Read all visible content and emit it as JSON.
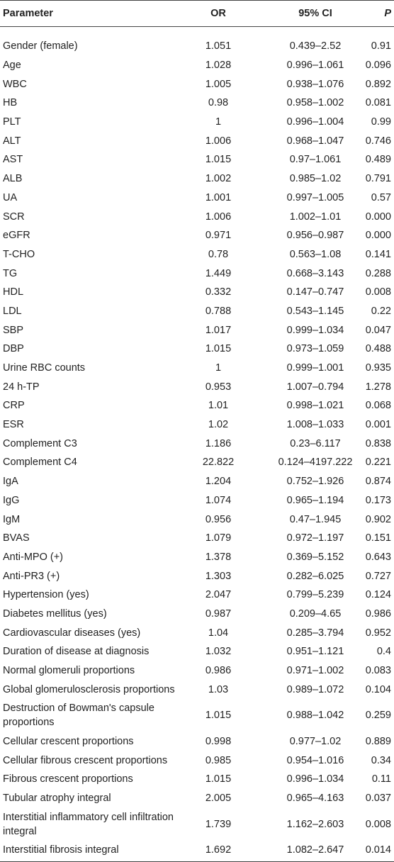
{
  "table": {
    "header": [
      "Parameter",
      "OR",
      "95% CI",
      "P"
    ],
    "rows": [
      [
        "Gender (female)",
        "1.051",
        "0.439–2.52",
        "0.91"
      ],
      [
        "Age",
        "1.028",
        "0.996–1.061",
        "0.096"
      ],
      [
        "WBC",
        "1.005",
        "0.938–1.076",
        "0.892"
      ],
      [
        "HB",
        "0.98",
        "0.958–1.002",
        "0.081"
      ],
      [
        "PLT",
        "1",
        "0.996–1.004",
        "0.99"
      ],
      [
        "ALT",
        "1.006",
        "0.968–1.047",
        "0.746"
      ],
      [
        "AST",
        "1.015",
        "0.97–1.061",
        "0.489"
      ],
      [
        "ALB",
        "1.002",
        "0.985–1.02",
        "0.791"
      ],
      [
        "UA",
        "1.001",
        "0.997–1.005",
        "0.57"
      ],
      [
        "SCR",
        "1.006",
        "1.002–1.01",
        "0.000"
      ],
      [
        "eGFR",
        "0.971",
        "0.956–0.987",
        "0.000"
      ],
      [
        "T-CHO",
        "0.78",
        "0.563–1.08",
        "0.141"
      ],
      [
        "TG",
        "1.449",
        "0.668–3.143",
        "0.288"
      ],
      [
        "HDL",
        "0.332",
        "0.147–0.747",
        "0.008"
      ],
      [
        "LDL",
        "0.788",
        "0.543–1.145",
        "0.22"
      ],
      [
        "SBP",
        "1.017",
        "0.999–1.034",
        "0.047"
      ],
      [
        "DBP",
        "1.015",
        "0.973–1.059",
        "0.488"
      ],
      [
        "Urine RBC counts",
        "1",
        "0.999–1.001",
        "0.935"
      ],
      [
        "24 h-TP",
        "0.953",
        "1.007–0.794",
        "1.278"
      ],
      [
        "CRP",
        "1.01",
        "0.998–1.021",
        "0.068"
      ],
      [
        "ESR",
        "1.02",
        "1.008–1.033",
        "0.001"
      ],
      [
        "Complement C3",
        "1.186",
        "0.23–6.117",
        "0.838"
      ],
      [
        "Complement C4",
        "22.822",
        "0.124–4197.222",
        "0.221"
      ],
      [
        "IgA",
        "1.204",
        "0.752–1.926",
        "0.874"
      ],
      [
        "IgG",
        "1.074",
        "0.965–1.194",
        "0.173"
      ],
      [
        "IgM",
        "0.956",
        "0.47–1.945",
        "0.902"
      ],
      [
        "BVAS",
        "1.079",
        "0.972–1.197",
        "0.151"
      ],
      [
        "Anti-MPO (+)",
        "1.378",
        "0.369–5.152",
        "0.643"
      ],
      [
        "Anti-PR3 (+)",
        "1.303",
        "0.282–6.025",
        "0.727"
      ],
      [
        "Hypertension (yes)",
        "2.047",
        "0.799–5.239",
        "0.124"
      ],
      [
        "Diabetes mellitus (yes)",
        "0.987",
        "0.209–4.65",
        "0.986"
      ],
      [
        "Cardiovascular diseases (yes)",
        "1.04",
        "0.285–3.794",
        "0.952"
      ],
      [
        "Duration of disease at diagnosis",
        "1.032",
        "0.951–1.121",
        "0.4"
      ],
      [
        "Normal glomeruli proportions",
        "0.986",
        "0.971–1.002",
        "0.083"
      ],
      [
        "Global glomerulosclerosis proportions",
        "1.03",
        "0.989–1.072",
        "0.104"
      ],
      [
        "Destruction of Bowman's capsule proportions",
        "1.015",
        "0.988–1.042",
        "0.259"
      ],
      [
        "Cellular crescent proportions",
        "0.998",
        "0.977–1.02",
        "0.889"
      ],
      [
        "Cellular fibrous crescent proportions",
        "0.985",
        "0.954–1.016",
        "0.34"
      ],
      [
        "Fibrous crescent proportions",
        "1.015",
        "0.996–1.034",
        "0.11"
      ],
      [
        "Tubular atrophy integral",
        "2.005",
        "0.965–4.163",
        "0.037"
      ],
      [
        "Interstitial inflammatory cell infiltration integral",
        "1.739",
        "1.162–2.603",
        "0.008"
      ],
      [
        "Interstitial fibrosis integral",
        "1.692",
        "1.082–2.647",
        "0.014"
      ]
    ]
  }
}
